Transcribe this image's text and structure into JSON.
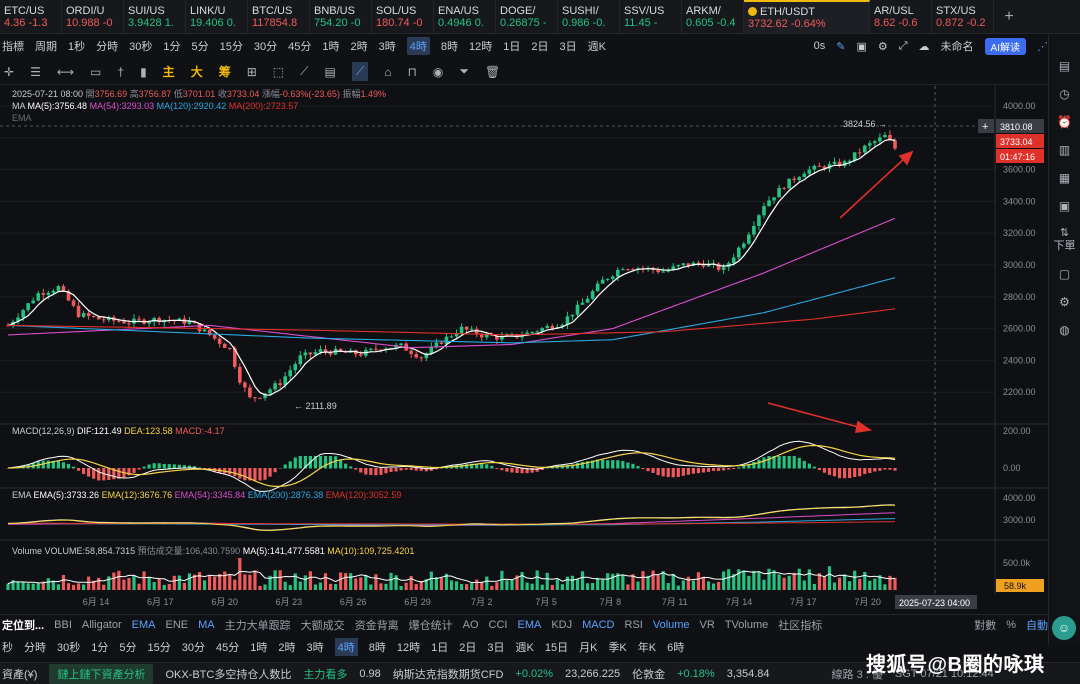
{
  "ticker": [
    {
      "sym": "ETC/US",
      "price": "4.36",
      "chg": "-1.3",
      "dir": "dn"
    },
    {
      "sym": "ORDI/U",
      "price": "10.988",
      "chg": "-0",
      "dir": "dn"
    },
    {
      "sym": "SUI/US",
      "price": "3.9428",
      "chg": "1.",
      "dir": "up"
    },
    {
      "sym": "LINK/U",
      "price": "19.406",
      "chg": "0.",
      "dir": "up"
    },
    {
      "sym": "BTC/US",
      "price": "117854.8",
      "chg": "",
      "dir": "dn"
    },
    {
      "sym": "BNB/US",
      "price": "754.20",
      "chg": "-0",
      "dir": "up"
    },
    {
      "sym": "SOL/US",
      "price": "180.74",
      "chg": "-0",
      "dir": "dn"
    },
    {
      "sym": "ENA/US",
      "price": "0.4946",
      "chg": "0.",
      "dir": "up"
    },
    {
      "sym": "DOGE/",
      "price": "0.26875",
      "chg": "-",
      "dir": "up"
    },
    {
      "sym": "SUSHI/",
      "price": "0.986",
      "chg": "-0.",
      "dir": "up"
    },
    {
      "sym": "SSV/US",
      "price": "11.45",
      "chg": "-",
      "dir": "up"
    },
    {
      "sym": "ARKM/",
      "price": "0.605",
      "chg": "-0.4",
      "dir": "up"
    },
    {
      "sym": "AR/USL",
      "price": "8.62",
      "chg": "-0.6",
      "dir": "dn"
    }
  ],
  "active_ticker": {
    "sym": "ETH/USDT",
    "price": "3732.62",
    "chg": "-0.64%"
  },
  "last_ticker": {
    "sym": "STX/US",
    "price": "0.872",
    "chg": "-0.2"
  },
  "timeframes": [
    "指標",
    "1秒",
    "分時",
    "30秒",
    "1分",
    "5分",
    "15分",
    "30分",
    "45分",
    "1時",
    "2時",
    "3時",
    "4時",
    "8時",
    "12時",
    "1日",
    "2日",
    "3日",
    "週K"
  ],
  "selected_tf": "4時",
  "tf_extra": {
    "period": "周期",
    "zero": "0s",
    "unnamed": "未命名",
    "ai": "AI解读"
  },
  "drawing_tools": {
    "cn1": "主",
    "cn2": "大",
    "cn3": "筹"
  },
  "legend": {
    "date": "2025-07-21 08:00",
    "open_label": "開",
    "open": "3756.69",
    "high_label": "高",
    "high": "3756.87",
    "low_label": "低",
    "low": "3701.01",
    "close_label": "收",
    "close": "3733.04",
    "chg_label": "漲幅",
    "chg": "-0.63%(-23.65)",
    "amp_label": "振幅",
    "amp": "1.49%",
    "ma_title": "MA",
    "ma5": "MA(5):3756.48",
    "ma54": "MA(54):3293.03",
    "ma120": "MA(120):2920.42",
    "ma200": "MA(200):2723.57",
    "ema_title": "EMA"
  },
  "macd_legend": {
    "title": "MACD(12,26,9)",
    "dif": "DIF:121.49",
    "dea": "DEA:123.58",
    "macd": "MACD:-4.17"
  },
  "ema_legend": {
    "title": "EMA",
    "e5": "EMA(5):3733.26",
    "e12": "EMA(12):3676.76",
    "e54": "EMA(54):3345.84",
    "e200": "EMA(200):2876.38",
    "e120": "EMA(120):3052.59"
  },
  "vol_legend": {
    "title": "Volume",
    "vol": "VOLUME:58,854.7315",
    "pred": "預估成交量:106,430.7590",
    "ma5": "MA(5):141,477.5581",
    "ma10": "MA(10):109,725.4201"
  },
  "price_axis": [
    "4000.00",
    "3800.00",
    "3600.00",
    "3400.00",
    "3200.00",
    "3000.00",
    "2800.00",
    "2600.00",
    "2400.00",
    "2200.00"
  ],
  "macd_axis": [
    "200.00",
    "0.00"
  ],
  "ema_axis": [
    "4000.00",
    "3000.00"
  ],
  "vol_axis": [
    "500.0k"
  ],
  "price_tags": {
    "cross": "3810.08",
    "last": "3733.04",
    "countdown": "01:47:16",
    "vol_last": "58.9k"
  },
  "annotations": {
    "high": "3824.56",
    "low": "2111.89"
  },
  "date_axis": [
    "6月 14",
    "6月 17",
    "6月 20",
    "6月 23",
    "6月 26",
    "6月 29",
    "7月 2",
    "7月 5",
    "7月 8",
    "7月 11",
    "7月 14",
    "7月 17",
    "7月 20"
  ],
  "crosshair_date": "2025-07-23 04:00",
  "right_labels": {
    "down": "下單"
  },
  "bottom_indicators": [
    "定位到...",
    "BBI",
    "Alligator",
    "EMA",
    "ENE",
    "MA",
    "主力大单跟踪",
    "大额成交",
    "资金背离",
    "爆仓统计",
    "AO",
    "CCI",
    "EMA",
    "KDJ",
    "MACD",
    "RSI",
    "Volume",
    "VR",
    "TVolume",
    "社区指标"
  ],
  "bottom_highlight": [
    "EMA",
    "MA",
    "MACD",
    "Volume"
  ],
  "bottom_right": {
    "log": "對數",
    "pct": "%",
    "auto": "自動"
  },
  "bottom_tf": [
    "秒",
    "分時",
    "30秒",
    "1分",
    "5分",
    "15分",
    "30分",
    "45分",
    "1時",
    "2時",
    "3時",
    "4時",
    "8時",
    "12時",
    "1日",
    "2日",
    "3日",
    "週K",
    "15日",
    "月K",
    "季K",
    "年K",
    "6時"
  ],
  "status": {
    "left": "資產(¥)",
    "btn": "鏈上鏈下資產分析",
    "news1": "OKX-BTC多空持仓人数比",
    "news1b": "主力看多",
    "news1v": "0.98",
    "news2": "纳斯达克指数期货CFD",
    "news2c": "+0.02%",
    "news2v": "23,266.225",
    "news3": "伦敦金",
    "news3c": "+0.18%",
    "news3v": "3,354.84",
    "line": "線路 3 : 優",
    "clock": "SGT 07/21 10:12:44"
  },
  "watermark": "搜狐号@B圈的咏琪",
  "colors": {
    "up": "#26c281",
    "down": "#f05a5a",
    "ma5": "#ffffff",
    "ma54": "#d94fd0",
    "ma120": "#2aa8e0",
    "ma200": "#e0302a",
    "dea": "#f5d547",
    "accent": "#f0b90b"
  },
  "chart_data": {
    "type": "candlestick",
    "title": "ETH/USDT 4時",
    "ylim": [
      2000,
      4100
    ],
    "price_path": [
      [
        0,
        2620
      ],
      [
        6,
        2820
      ],
      [
        10,
        2860
      ],
      [
        14,
        2690
      ],
      [
        18,
        2660
      ],
      [
        24,
        2640
      ],
      [
        30,
        2660
      ],
      [
        36,
        2640
      ],
      [
        40,
        2560
      ],
      [
        44,
        2470
      ],
      [
        46,
        2280
      ],
      [
        48,
        2160
      ],
      [
        50,
        2180
      ],
      [
        54,
        2260
      ],
      [
        58,
        2420
      ],
      [
        62,
        2460
      ],
      [
        66,
        2450
      ],
      [
        70,
        2440
      ],
      [
        74,
        2480
      ],
      [
        78,
        2490
      ],
      [
        82,
        2420
      ],
      [
        86,
        2520
      ],
      [
        90,
        2600
      ],
      [
        94,
        2560
      ],
      [
        98,
        2540
      ],
      [
        102,
        2560
      ],
      [
        106,
        2600
      ],
      [
        110,
        2640
      ],
      [
        114,
        2760
      ],
      [
        118,
        2900
      ],
      [
        122,
        2990
      ],
      [
        126,
        2980
      ],
      [
        130,
        2960
      ],
      [
        134,
        3000
      ],
      [
        138,
        3010
      ],
      [
        142,
        2970
      ],
      [
        146,
        3150
      ],
      [
        150,
        3380
      ],
      [
        154,
        3500
      ],
      [
        158,
        3590
      ],
      [
        162,
        3620
      ],
      [
        166,
        3640
      ],
      [
        170,
        3740
      ],
      [
        174,
        3810
      ],
      [
        176,
        3733
      ]
    ],
    "ma_series": [
      {
        "name": "MA(54)",
        "values": [
          [
            0,
            2560
          ],
          [
            40,
            2620
          ],
          [
            80,
            2480
          ],
          [
            100,
            2500
          ],
          [
            120,
            2600
          ],
          [
            150,
            2950
          ],
          [
            176,
            3293
          ]
        ]
      },
      {
        "name": "MA(120)",
        "values": [
          [
            0,
            2620
          ],
          [
            60,
            2540
          ],
          [
            100,
            2510
          ],
          [
            120,
            2530
          ],
          [
            150,
            2700
          ],
          [
            176,
            2920
          ]
        ]
      },
      {
        "name": "MA(200)",
        "values": [
          [
            0,
            2620
          ],
          [
            60,
            2590
          ],
          [
            100,
            2560
          ],
          [
            130,
            2580
          ],
          [
            160,
            2660
          ],
          [
            176,
            2724
          ]
        ]
      }
    ]
  }
}
